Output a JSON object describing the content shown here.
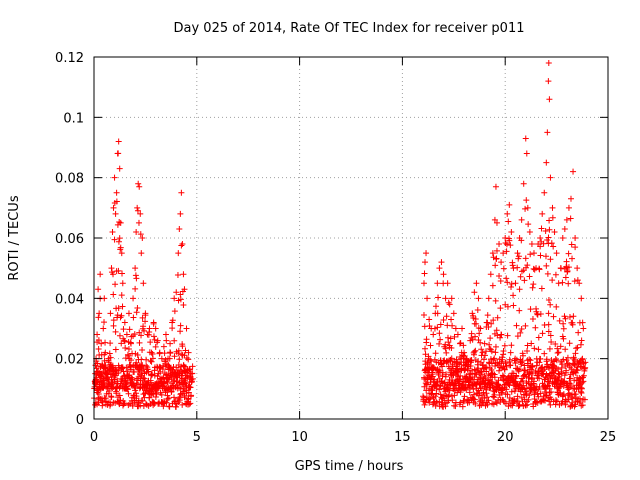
{
  "chart_data": {
    "type": "scatter",
    "title": "Day 025 of 2014, Rate Of TEC Index for receiver p011",
    "xlabel": "GPS time / hours",
    "ylabel": "ROTI / TECUs",
    "xlim": [
      0,
      25
    ],
    "ylim": [
      0,
      0.12
    ],
    "xticks": [
      0,
      5,
      10,
      15,
      20,
      25
    ],
    "xtick_labels": [
      "0",
      "5",
      "10",
      "15",
      "20",
      "25"
    ],
    "yticks": [
      0,
      0.02,
      0.04,
      0.06,
      0.08,
      0.1,
      0.12
    ],
    "ytick_labels": [
      "0",
      "0.02",
      "0.04",
      "0.06",
      "0.08",
      "0.1",
      "0.12"
    ],
    "grid": true,
    "marker": "+",
    "color": "#ff0000",
    "series": [
      {
        "name": "ROTI",
        "points": [
          [
            0.05,
            0.012
          ],
          [
            0.1,
            0.02
          ],
          [
            0.15,
            0.028
          ],
          [
            0.2,
            0.043
          ],
          [
            0.25,
            0.035
          ],
          [
            0.3,
            0.048
          ],
          [
            0.35,
            0.025
          ],
          [
            0.4,
            0.018
          ],
          [
            0.45,
            0.03
          ],
          [
            0.5,
            0.04
          ],
          [
            0.55,
            0.022
          ],
          [
            0.6,
            0.015
          ],
          [
            0.7,
            0.02
          ],
          [
            0.8,
            0.035
          ],
          [
            0.85,
            0.05
          ],
          [
            0.9,
            0.062
          ],
          [
            0.95,
            0.07
          ],
          [
            1.0,
            0.08
          ],
          [
            1.05,
            0.068
          ],
          [
            1.1,
            0.075
          ],
          [
            1.15,
            0.088
          ],
          [
            1.2,
            0.092
          ],
          [
            1.25,
            0.083
          ],
          [
            1.3,
            0.065
          ],
          [
            1.35,
            0.055
          ],
          [
            1.4,
            0.045
          ],
          [
            1.5,
            0.032
          ],
          [
            1.6,
            0.028
          ],
          [
            1.7,
            0.035
          ],
          [
            1.8,
            0.025
          ],
          [
            1.9,
            0.04
          ],
          [
            2.0,
            0.05
          ],
          [
            2.05,
            0.062
          ],
          [
            2.1,
            0.07
          ],
          [
            2.15,
            0.078
          ],
          [
            2.2,
            0.077
          ],
          [
            2.25,
            0.068
          ],
          [
            2.3,
            0.055
          ],
          [
            2.35,
            0.06
          ],
          [
            2.4,
            0.045
          ],
          [
            2.5,
            0.035
          ],
          [
            2.6,
            0.028
          ],
          [
            2.7,
            0.03
          ],
          [
            2.8,
            0.022
          ],
          [
            2.9,
            0.032
          ],
          [
            3.0,
            0.03
          ],
          [
            3.1,
            0.026
          ],
          [
            3.2,
            0.022
          ],
          [
            3.3,
            0.02
          ],
          [
            3.4,
            0.024
          ],
          [
            3.5,
            0.028
          ],
          [
            3.6,
            0.02
          ],
          [
            3.7,
            0.025
          ],
          [
            3.8,
            0.032
          ],
          [
            3.9,
            0.04
          ],
          [
            4.0,
            0.042
          ],
          [
            4.1,
            0.055
          ],
          [
            4.15,
            0.063
          ],
          [
            4.2,
            0.068
          ],
          [
            4.25,
            0.075
          ],
          [
            4.3,
            0.058
          ],
          [
            4.35,
            0.048
          ],
          [
            4.4,
            0.043
          ],
          [
            4.5,
            0.03
          ],
          [
            4.6,
            0.022
          ],
          [
            4.7,
            0.015
          ],
          [
            16.05,
            0.045
          ],
          [
            16.1,
            0.052
          ],
          [
            16.15,
            0.055
          ],
          [
            16.2,
            0.04
          ],
          [
            16.3,
            0.033
          ],
          [
            16.4,
            0.03
          ],
          [
            16.5,
            0.028
          ],
          [
            16.6,
            0.035
          ],
          [
            16.7,
            0.045
          ],
          [
            16.8,
            0.05
          ],
          [
            16.9,
            0.052
          ],
          [
            17.0,
            0.048
          ],
          [
            17.1,
            0.04
          ],
          [
            17.2,
            0.045
          ],
          [
            17.3,
            0.038
          ],
          [
            17.4,
            0.04
          ],
          [
            17.5,
            0.035
          ],
          [
            17.6,
            0.03
          ],
          [
            17.7,
            0.028
          ],
          [
            17.8,
            0.025
          ],
          [
            17.9,
            0.03
          ],
          [
            18.0,
            0.022
          ],
          [
            18.1,
            0.02
          ],
          [
            18.2,
            0.018
          ],
          [
            18.3,
            0.026
          ],
          [
            18.4,
            0.035
          ],
          [
            18.5,
            0.042
          ],
          [
            18.6,
            0.045
          ],
          [
            18.7,
            0.04
          ],
          [
            18.8,
            0.03
          ],
          [
            18.9,
            0.022
          ],
          [
            19.0,
            0.025
          ],
          [
            19.1,
            0.032
          ],
          [
            19.2,
            0.04
          ],
          [
            19.3,
            0.048
          ],
          [
            19.4,
            0.055
          ],
          [
            19.5,
            0.066
          ],
          [
            19.55,
            0.077
          ],
          [
            19.6,
            0.065
          ],
          [
            19.7,
            0.058
          ],
          [
            19.8,
            0.052
          ],
          [
            19.9,
            0.055
          ],
          [
            20.0,
            0.06
          ],
          [
            20.1,
            0.068
          ],
          [
            20.2,
            0.071
          ],
          [
            20.3,
            0.062
          ],
          [
            20.4,
            0.05
          ],
          [
            20.5,
            0.045
          ],
          [
            20.6,
            0.055
          ],
          [
            20.7,
            0.06
          ],
          [
            20.8,
            0.066
          ],
          [
            20.9,
            0.078
          ],
          [
            21.0,
            0.093
          ],
          [
            21.05,
            0.088
          ],
          [
            21.1,
            0.07
          ],
          [
            21.2,
            0.062
          ],
          [
            21.3,
            0.058
          ],
          [
            21.4,
            0.055
          ],
          [
            21.5,
            0.05
          ],
          [
            21.6,
            0.058
          ],
          [
            21.7,
            0.06
          ],
          [
            21.8,
            0.068
          ],
          [
            21.9,
            0.075
          ],
          [
            22.0,
            0.085
          ],
          [
            22.05,
            0.095
          ],
          [
            22.1,
            0.112
          ],
          [
            22.12,
            0.118
          ],
          [
            22.15,
            0.106
          ],
          [
            22.2,
            0.08
          ],
          [
            22.3,
            0.07
          ],
          [
            22.4,
            0.062
          ],
          [
            22.5,
            0.055
          ],
          [
            22.6,
            0.045
          ],
          [
            22.7,
            0.05
          ],
          [
            22.8,
            0.06
          ],
          [
            22.9,
            0.063
          ],
          [
            23.0,
            0.066
          ],
          [
            23.1,
            0.07
          ],
          [
            23.2,
            0.073
          ],
          [
            23.3,
            0.082
          ],
          [
            23.4,
            0.06
          ],
          [
            23.5,
            0.05
          ],
          [
            23.6,
            0.045
          ],
          [
            23.7,
            0.04
          ],
          [
            23.8,
            0.03
          ]
        ],
        "dense_bands": [
          {
            "x": [
              0.0,
              4.8
            ],
            "y": [
              0.004,
              0.018
            ]
          },
          {
            "x": [
              16.0,
              23.9
            ],
            "y": [
              0.004,
              0.02
            ]
          }
        ]
      }
    ]
  }
}
